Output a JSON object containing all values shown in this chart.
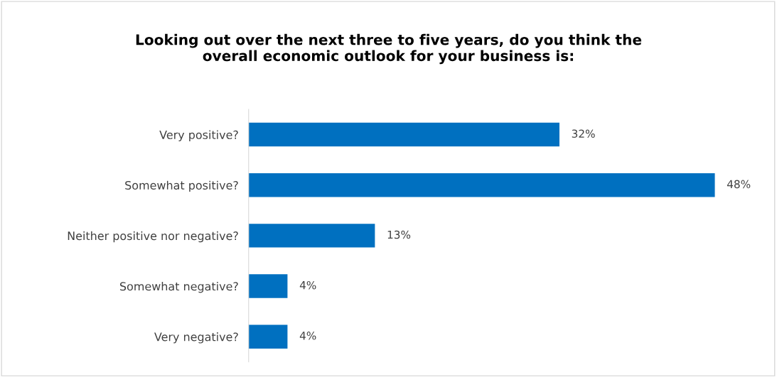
{
  "chart_data": {
    "type": "bar",
    "orientation": "horizontal",
    "title": "Looking out over the next three to five years, do you think the\noverall economic outlook for your business is:",
    "categories": [
      "Very positive?",
      "Somewhat positive?",
      "Neither positive nor negative?",
      "Somewhat negative?",
      "Very negative?"
    ],
    "values": [
      32,
      48,
      13,
      4,
      4
    ],
    "value_labels": [
      "32%",
      "48%",
      "13%",
      "4%",
      "4%"
    ],
    "color": "#0070c0",
    "grid": false,
    "legend": false
  }
}
